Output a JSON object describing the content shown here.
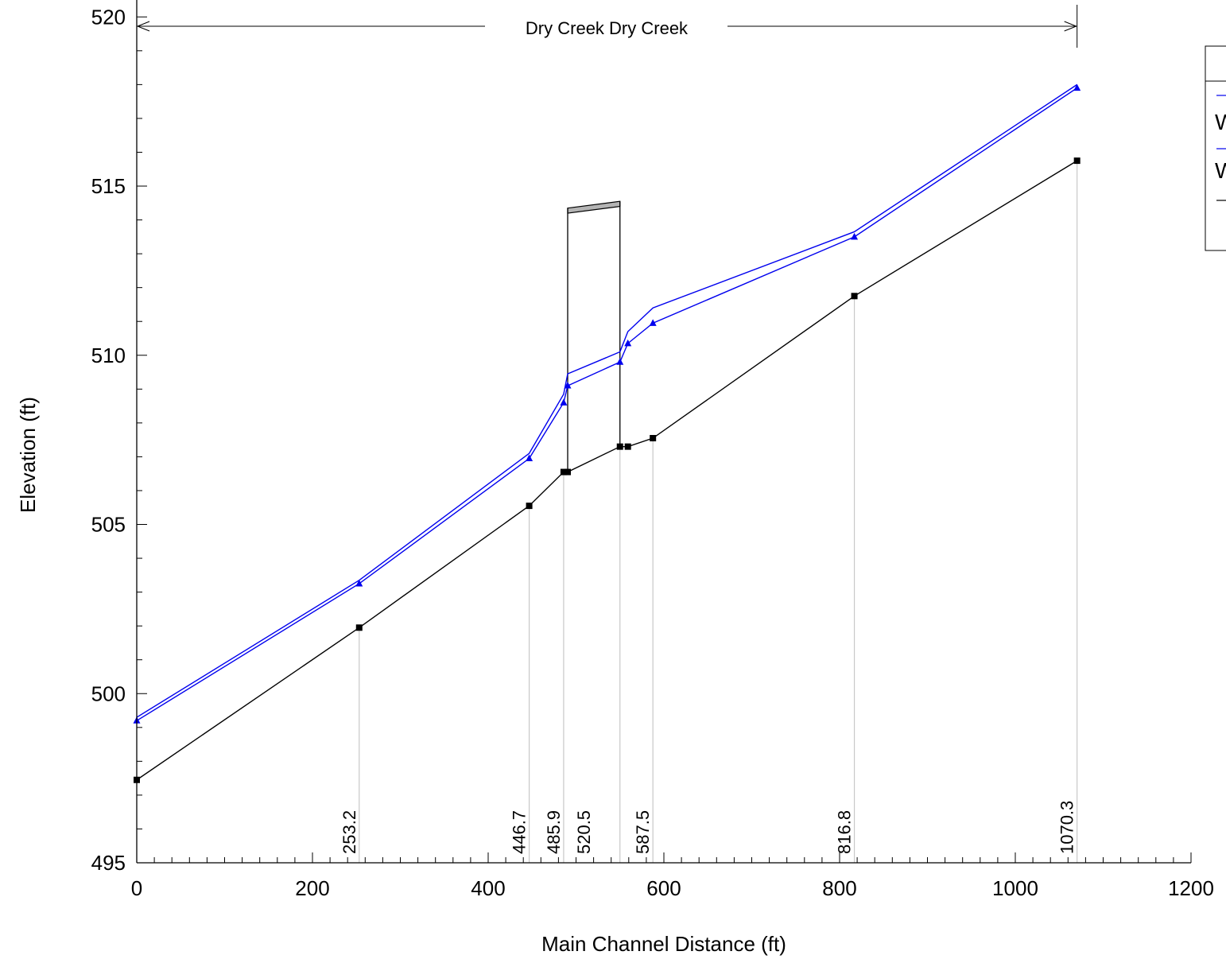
{
  "chart_data": {
    "type": "line",
    "title": "",
    "xlabel": "Main Channel Distance (ft)",
    "ylabel": "Elevation (ft)",
    "xlim": [
      0,
      1200
    ],
    "ylim": [
      495,
      520.5
    ],
    "x_ticks": [
      0,
      200,
      400,
      600,
      800,
      1000,
      1200
    ],
    "y_ticks": [
      495,
      500,
      505,
      510,
      515,
      520
    ],
    "reach_label": "Dry Creek Dry Creek",
    "reach_range": [
      0,
      1070.3
    ],
    "station_labels": [
      {
        "x": 253.2,
        "label": "253.2"
      },
      {
        "x": 446.7,
        "label": "446.7"
      },
      {
        "x": 485.9,
        "label": "485.9"
      },
      {
        "x": 520.5,
        "label": "520.5"
      },
      {
        "x": 587.5,
        "label": "587.5"
      },
      {
        "x": 816.8,
        "label": "816.8"
      },
      {
        "x": 1070.3,
        "label": "1070.3"
      }
    ],
    "station_lines_x": [
      253.2,
      446.7,
      485.9,
      550,
      587.5,
      816.8,
      1070.3
    ],
    "series": [
      {
        "name": "",
        "color": "#0000ee",
        "marker": "none",
        "points": [
          [
            0,
            499.3
          ],
          [
            253.2,
            503.35
          ],
          [
            446.7,
            507.1
          ],
          [
            485.9,
            508.85
          ],
          [
            490.5,
            509.45
          ],
          [
            550,
            510.1
          ],
          [
            559,
            510.7
          ],
          [
            587.5,
            511.4
          ],
          [
            816.8,
            513.65
          ],
          [
            1070.3,
            518.0
          ]
        ]
      },
      {
        "name": "",
        "color": "#0000ee",
        "marker": "triangle",
        "points": [
          [
            0,
            499.2
          ],
          [
            253.2,
            503.25
          ],
          [
            446.7,
            506.95
          ],
          [
            485.9,
            508.6
          ],
          [
            490.5,
            509.1
          ],
          [
            550,
            509.8
          ],
          [
            559,
            510.35
          ],
          [
            587.5,
            510.95
          ],
          [
            816.8,
            513.5
          ],
          [
            1070.3,
            517.9
          ]
        ]
      },
      {
        "name": "",
        "color": "#000000",
        "marker": "square",
        "points": [
          [
            0,
            497.45
          ],
          [
            253.2,
            501.95
          ],
          [
            446.7,
            505.55
          ],
          [
            485.9,
            506.55
          ],
          [
            490.5,
            506.55
          ],
          [
            550,
            507.3
          ],
          [
            559,
            507.3
          ],
          [
            587.5,
            507.55
          ],
          [
            816.8,
            511.75
          ],
          [
            1070.3,
            515.75
          ]
        ]
      }
    ],
    "structure": {
      "x_left": 490.5,
      "x_right": 550,
      "top_left": 514.35,
      "top_right": 514.55,
      "deck_bottom_left": 514.2,
      "deck_bottom_right": 514.4,
      "bottom_left": 506.55,
      "bottom_right": 507.3
    },
    "legend": {
      "placement": "top-right",
      "entries": [
        {
          "label": "W",
          "color": "#0000ee"
        },
        {
          "label": "W",
          "color": "#0000ee"
        },
        {
          "label": "",
          "color": "#000000"
        }
      ]
    }
  }
}
